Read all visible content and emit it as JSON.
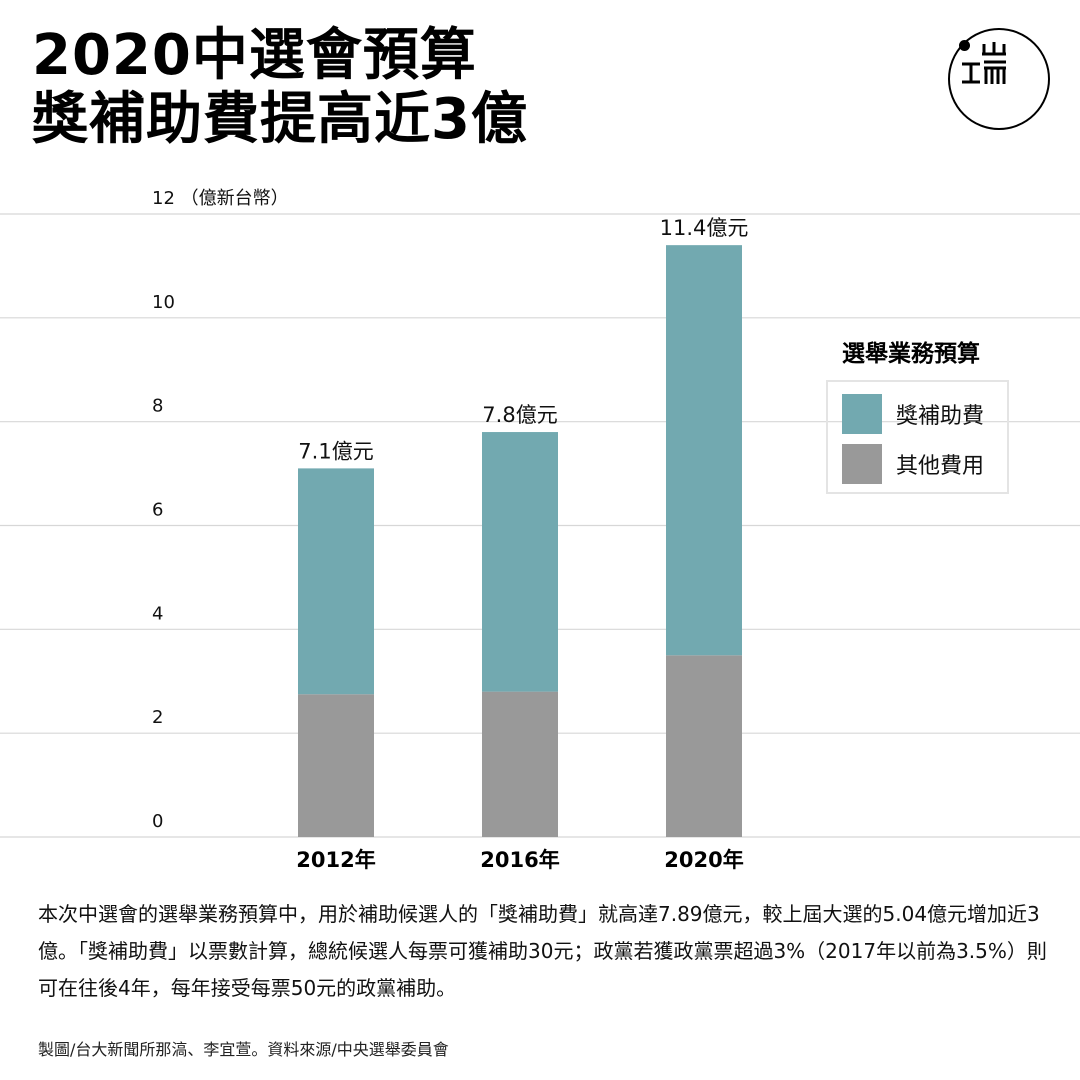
{
  "title": {
    "line1": "2020中選會預算",
    "line2": "獎補助費提高近3億"
  },
  "logo": {
    "text_top": "山",
    "text_bottom": "工而"
  },
  "chart_data": {
    "type": "bar",
    "stacked": true,
    "title": "2020中選會預算 獎補助費提高近3億",
    "ylabel": "（億新台幣）",
    "ylim": [
      0,
      12
    ],
    "yticks": [
      0,
      2,
      4,
      6,
      8,
      10,
      12
    ],
    "categories": [
      "2012年",
      "2016年",
      "2020年"
    ],
    "series": [
      {
        "name": "其他費用",
        "color": "#999999",
        "values": [
          2.75,
          2.8,
          3.5
        ]
      },
      {
        "name": "獎補助費",
        "color": "#72a9b0",
        "values": [
          4.35,
          5.0,
          7.9
        ]
      }
    ],
    "totals": [
      7.1,
      7.8,
      11.4
    ],
    "total_labels": [
      "7.1億元",
      "7.8億元",
      "11.4億元"
    ],
    "grid": true,
    "legend_position": "right",
    "legend_title": "選舉業務預算"
  },
  "legend": {
    "title": "選舉業務預算",
    "items": [
      {
        "label": "獎補助費",
        "color": "#72a9b0"
      },
      {
        "label": "其他費用",
        "color": "#999999"
      }
    ]
  },
  "description": "本次中選會的選舉業務預算中，用於補助候選人的「獎補助費」就高達7.89億元，較上屆大選的5.04億元增加近3億。「獎補助費」以票數計算，總統候選人每票可獲補助30元；政黨若獲政黨票超過3%（2017年以前為3.5%）則可在往後4年，每年接受每票50元的政黨補助。",
  "credit": "製圖/台大新聞所那滈、李宜萱。資料來源/中央選舉委員會"
}
